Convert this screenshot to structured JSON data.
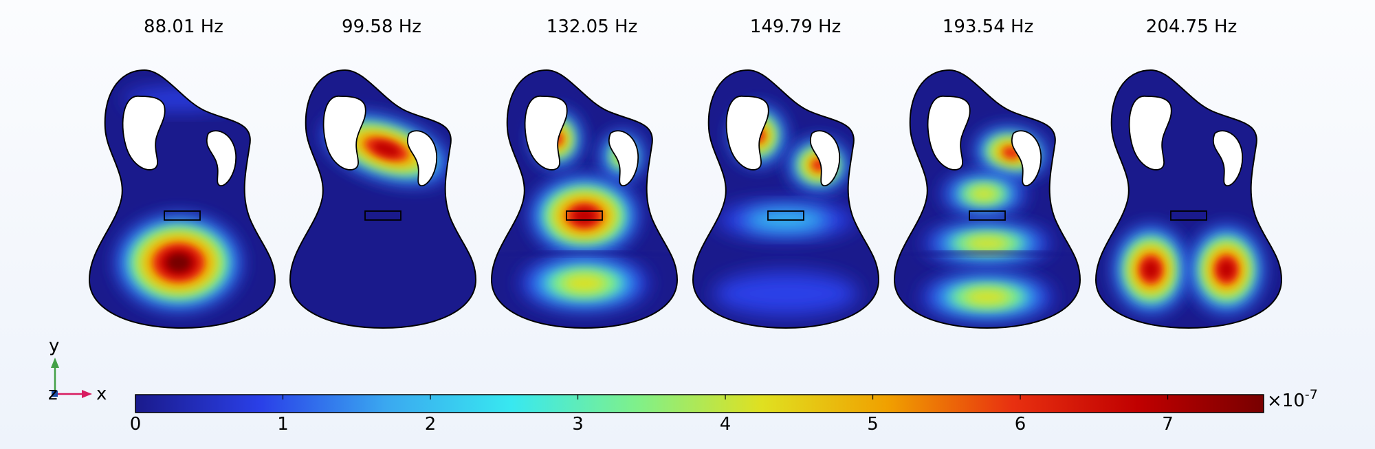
{
  "modes": [
    {
      "frequency": "88.01 Hz",
      "pattern": "lower-center"
    },
    {
      "frequency": "99.58 Hz",
      "pattern": "upper-band"
    },
    {
      "frequency": "132.05 Hz",
      "pattern": "three-lobe"
    },
    {
      "frequency": "149.79 Hz",
      "pattern": "upper-pair"
    },
    {
      "frequency": "193.54 Hz",
      "pattern": "stacked-bands"
    },
    {
      "frequency": "204.75 Hz",
      "pattern": "lower-pair"
    }
  ],
  "colorbar": {
    "ticks": [
      "0",
      "1",
      "2",
      "3",
      "4",
      "5",
      "6",
      "7"
    ],
    "tick_values": [
      0,
      1,
      2,
      3,
      4,
      5,
      6,
      7
    ],
    "max_value": 7.65,
    "multiplier_base": "×10",
    "multiplier_exp": "-7",
    "colormap": [
      "#1a1a8c",
      "#2a40e8",
      "#3aa8f0",
      "#38e8f0",
      "#7ff08a",
      "#e0e020",
      "#f0a000",
      "#e83010",
      "#c00000",
      "#780000"
    ]
  },
  "axes": {
    "x_label": "x",
    "y_label": "y",
    "z_label": "z",
    "x_color": "#d81b60",
    "y_color": "#43a047",
    "z_color": "#1e4fa8"
  },
  "colors": {
    "background_low": "#1a1a8c",
    "outline": "#000000"
  }
}
